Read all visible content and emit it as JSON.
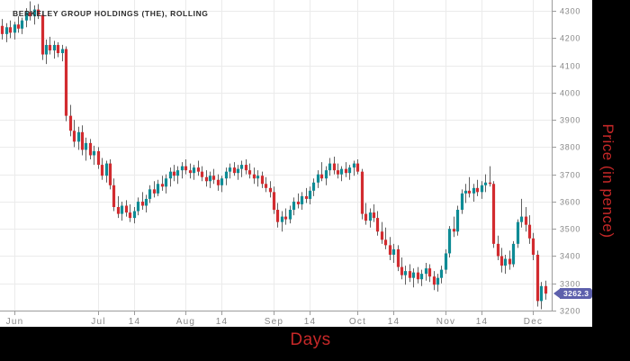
{
  "chart_data": {
    "type": "candlestick",
    "title": "BERKELEY GROUP HOLDINGS (THE), ROLLING",
    "xlabel": "Days",
    "ylabel": "Price (in pence)",
    "ylim": [
      3200,
      4340
    ],
    "grid": true,
    "y_ticks": [
      3200,
      3300,
      3400,
      3500,
      3600,
      3700,
      3800,
      3900,
      4000,
      4100,
      4200,
      4300
    ],
    "x_ticks": [
      {
        "label": "Jun",
        "index": 3
      },
      {
        "label": "Jul",
        "index": 24
      },
      {
        "label": "14",
        "index": 33
      },
      {
        "label": "Aug",
        "index": 46
      },
      {
        "label": "14",
        "index": 55
      },
      {
        "label": "Sep",
        "index": 68
      },
      {
        "label": "14",
        "index": 77
      },
      {
        "label": "Oct",
        "index": 89
      },
      {
        "label": "14",
        "index": 98
      },
      {
        "label": "Nov",
        "index": 111
      },
      {
        "label": "14",
        "index": 120
      },
      {
        "label": "Dec",
        "index": 133
      }
    ],
    "last_price": 3262.3,
    "last_price_label": "3262.3",
    "candles": [
      [
        4245,
        4270,
        4195,
        4215
      ],
      [
        4215,
        4255,
        4185,
        4240
      ],
      [
        4240,
        4265,
        4200,
        4220
      ],
      [
        4220,
        4260,
        4195,
        4250
      ],
      [
        4250,
        4280,
        4220,
        4235
      ],
      [
        4235,
        4275,
        4215,
        4265
      ],
      [
        4265,
        4310,
        4240,
        4295
      ],
      [
        4295,
        4335,
        4265,
        4280
      ],
      [
        4280,
        4320,
        4250,
        4305
      ],
      [
        4305,
        4325,
        4270,
        4285
      ],
      [
        4285,
        4300,
        4120,
        4140
      ],
      [
        4140,
        4195,
        4105,
        4175
      ],
      [
        4175,
        4205,
        4140,
        4155
      ],
      [
        4155,
        4190,
        4125,
        4175
      ],
      [
        4175,
        4185,
        4130,
        4145
      ],
      [
        4145,
        4175,
        4115,
        4160
      ],
      [
        4160,
        4170,
        3895,
        3915
      ],
      [
        3915,
        3955,
        3840,
        3860
      ],
      [
        3860,
        3900,
        3800,
        3820
      ],
      [
        3820,
        3875,
        3790,
        3855
      ],
      [
        3855,
        3880,
        3770,
        3790
      ],
      [
        3790,
        3835,
        3750,
        3815
      ],
      [
        3815,
        3830,
        3755,
        3770
      ],
      [
        3770,
        3805,
        3735,
        3785
      ],
      [
        3785,
        3800,
        3720,
        3735
      ],
      [
        3735,
        3760,
        3680,
        3695
      ],
      [
        3695,
        3750,
        3670,
        3740
      ],
      [
        3740,
        3755,
        3645,
        3660
      ],
      [
        3660,
        3685,
        3565,
        3580
      ],
      [
        3580,
        3620,
        3540,
        3555
      ],
      [
        3555,
        3600,
        3530,
        3585
      ],
      [
        3585,
        3605,
        3545,
        3560
      ],
      [
        3560,
        3590,
        3525,
        3540
      ],
      [
        3540,
        3580,
        3520,
        3565
      ],
      [
        3565,
        3615,
        3550,
        3600
      ],
      [
        3600,
        3635,
        3570,
        3585
      ],
      [
        3585,
        3625,
        3560,
        3610
      ],
      [
        3610,
        3660,
        3595,
        3645
      ],
      [
        3645,
        3675,
        3615,
        3630
      ],
      [
        3630,
        3680,
        3620,
        3665
      ],
      [
        3665,
        3695,
        3640,
        3655
      ],
      [
        3655,
        3700,
        3630,
        3685
      ],
      [
        3685,
        3725,
        3655,
        3710
      ],
      [
        3710,
        3735,
        3675,
        3695
      ],
      [
        3695,
        3730,
        3665,
        3715
      ],
      [
        3715,
        3745,
        3685,
        3730
      ],
      [
        3730,
        3755,
        3700,
        3715
      ],
      [
        3715,
        3740,
        3685,
        3705
      ],
      [
        3705,
        3735,
        3680,
        3725
      ],
      [
        3725,
        3750,
        3695,
        3710
      ],
      [
        3710,
        3730,
        3675,
        3690
      ],
      [
        3690,
        3715,
        3655,
        3675
      ],
      [
        3675,
        3710,
        3650,
        3695
      ],
      [
        3695,
        3720,
        3665,
        3680
      ],
      [
        3680,
        3700,
        3640,
        3660
      ],
      [
        3660,
        3695,
        3635,
        3685
      ],
      [
        3685,
        3725,
        3660,
        3710
      ],
      [
        3710,
        3740,
        3685,
        3725
      ],
      [
        3725,
        3745,
        3695,
        3705
      ],
      [
        3705,
        3735,
        3680,
        3720
      ],
      [
        3720,
        3750,
        3690,
        3735
      ],
      [
        3735,
        3755,
        3700,
        3715
      ],
      [
        3715,
        3740,
        3685,
        3700
      ],
      [
        3700,
        3725,
        3665,
        3685
      ],
      [
        3685,
        3715,
        3655,
        3695
      ],
      [
        3695,
        3710,
        3650,
        3665
      ],
      [
        3665,
        3690,
        3635,
        3650
      ],
      [
        3650,
        3675,
        3615,
        3635
      ],
      [
        3635,
        3655,
        3555,
        3570
      ],
      [
        3570,
        3595,
        3505,
        3525
      ],
      [
        3525,
        3565,
        3490,
        3545
      ],
      [
        3545,
        3575,
        3515,
        3535
      ],
      [
        3535,
        3585,
        3520,
        3570
      ],
      [
        3570,
        3615,
        3550,
        3600
      ],
      [
        3600,
        3630,
        3575,
        3590
      ],
      [
        3590,
        3635,
        3570,
        3620
      ],
      [
        3620,
        3650,
        3595,
        3610
      ],
      [
        3610,
        3655,
        3590,
        3640
      ],
      [
        3640,
        3685,
        3620,
        3670
      ],
      [
        3670,
        3715,
        3650,
        3700
      ],
      [
        3700,
        3745,
        3675,
        3685
      ],
      [
        3685,
        3730,
        3660,
        3715
      ],
      [
        3715,
        3760,
        3695,
        3740
      ],
      [
        3740,
        3765,
        3700,
        3715
      ],
      [
        3715,
        3740,
        3685,
        3700
      ],
      [
        3700,
        3730,
        3675,
        3720
      ],
      [
        3720,
        3745,
        3690,
        3705
      ],
      [
        3705,
        3735,
        3680,
        3725
      ],
      [
        3725,
        3750,
        3695,
        3740
      ],
      [
        3740,
        3755,
        3700,
        3710
      ],
      [
        3710,
        3720,
        3535,
        3555
      ],
      [
        3555,
        3595,
        3515,
        3530
      ],
      [
        3530,
        3575,
        3505,
        3560
      ],
      [
        3560,
        3590,
        3525,
        3540
      ],
      [
        3540,
        3565,
        3475,
        3490
      ],
      [
        3490,
        3525,
        3445,
        3460
      ],
      [
        3460,
        3505,
        3425,
        3440
      ],
      [
        3440,
        3470,
        3385,
        3405
      ],
      [
        3405,
        3445,
        3375,
        3425
      ],
      [
        3425,
        3440,
        3345,
        3360
      ],
      [
        3360,
        3395,
        3315,
        3330
      ],
      [
        3330,
        3365,
        3295,
        3345
      ],
      [
        3345,
        3370,
        3305,
        3320
      ],
      [
        3320,
        3355,
        3285,
        3340
      ],
      [
        3340,
        3360,
        3300,
        3315
      ],
      [
        3315,
        3350,
        3290,
        3335
      ],
      [
        3335,
        3375,
        3310,
        3355
      ],
      [
        3355,
        3370,
        3305,
        3325
      ],
      [
        3325,
        3345,
        3275,
        3295
      ],
      [
        3295,
        3335,
        3270,
        3320
      ],
      [
        3320,
        3365,
        3300,
        3350
      ],
      [
        3350,
        3425,
        3335,
        3410
      ],
      [
        3410,
        3510,
        3395,
        3500
      ],
      [
        3500,
        3545,
        3470,
        3490
      ],
      [
        3490,
        3585,
        3475,
        3570
      ],
      [
        3570,
        3645,
        3555,
        3630
      ],
      [
        3630,
        3665,
        3595,
        3640
      ],
      [
        3640,
        3690,
        3615,
        3630
      ],
      [
        3630,
        3665,
        3600,
        3650
      ],
      [
        3650,
        3680,
        3620,
        3635
      ],
      [
        3635,
        3675,
        3610,
        3660
      ],
      [
        3660,
        3700,
        3635,
        3670
      ],
      [
        3670,
        3730,
        3655,
        3665
      ],
      [
        3665,
        3675,
        3430,
        3445
      ],
      [
        3445,
        3475,
        3385,
        3400
      ],
      [
        3400,
        3430,
        3340,
        3365
      ],
      [
        3365,
        3405,
        3335,
        3390
      ],
      [
        3390,
        3420,
        3350,
        3370
      ],
      [
        3370,
        3455,
        3360,
        3445
      ],
      [
        3445,
        3535,
        3430,
        3525
      ],
      [
        3525,
        3610,
        3505,
        3545
      ],
      [
        3545,
        3580,
        3490,
        3515
      ],
      [
        3515,
        3550,
        3445,
        3465
      ],
      [
        3465,
        3485,
        3385,
        3405
      ],
      [
        3405,
        3420,
        3215,
        3235
      ],
      [
        3235,
        3305,
        3205,
        3290
      ],
      [
        3290,
        3310,
        3240,
        3262.3
      ]
    ]
  },
  "colors": {
    "up": "#0d8b95",
    "down": "#d22b2f",
    "wick": "#616161",
    "grid": "#ebebeb",
    "axis_line": "#9c9c9c",
    "axis_text": "#878787",
    "tag_bg": "#5d60ac",
    "tag_text": "#ffffff",
    "label_red": "#c62828",
    "frame_bg": "#000000",
    "panel_bg": "#ffffff",
    "title_text": "#2b2b2b"
  }
}
